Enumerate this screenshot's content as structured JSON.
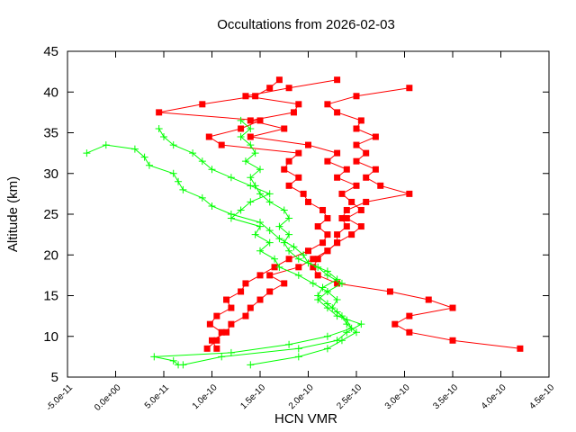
{
  "chart_data": {
    "type": "line",
    "title": "Occultations from 2026-02-03",
    "x_label": "HCN VMR",
    "y_label": "Altitude (km)",
    "xlim": [
      -5e-11,
      4.5e-10
    ],
    "ylim": [
      5,
      45
    ],
    "xticks": [
      {
        "value": -5e-11,
        "label": "-5.0e-11"
      },
      {
        "value": 0,
        "label": "0.0e+00"
      },
      {
        "value": 5e-11,
        "label": "5.0e-11"
      },
      {
        "value": 1e-10,
        "label": "1.0e-10"
      },
      {
        "value": 1.5e-10,
        "label": "1.5e-10"
      },
      {
        "value": 2e-10,
        "label": "2.0e-10"
      },
      {
        "value": 2.5e-10,
        "label": "2.5e-10"
      },
      {
        "value": 3e-10,
        "label": "3.0e-10"
      },
      {
        "value": 3.5e-10,
        "label": "3.5e-10"
      },
      {
        "value": 4e-10,
        "label": "4.0e-10"
      },
      {
        "value": 4.5e-10,
        "label": "4.5e-10"
      }
    ],
    "yticks": [
      5,
      10,
      15,
      20,
      25,
      30,
      35,
      40,
      45
    ],
    "grid": false,
    "series": [
      {
        "color": "#ff0000",
        "marker": "square",
        "y": [
          8.5,
          9.5,
          10.5,
          11.5,
          12.5,
          13.5,
          14.5,
          15.5,
          16.5,
          17.5,
          18.5,
          19.5,
          20.5,
          21.5,
          22.5,
          23.5,
          24.5,
          25.5,
          26.5,
          27.5,
          28.5,
          29.5,
          30.5,
          31.5,
          32.5,
          33.5,
          34.5,
          35.5,
          36.5,
          37.5,
          38.5,
          39.5,
          40.5
        ],
        "x": [
          4.2e-10,
          3.5e-10,
          3.05e-10,
          2.9e-10,
          3.05e-10,
          3.5e-10,
          3.25e-10,
          2.85e-10,
          2.3e-10,
          2.1e-10,
          2.05e-10,
          2.1e-10,
          2.2e-10,
          2.3e-10,
          2.3e-10,
          2.4e-10,
          2.35e-10,
          2.4e-10,
          2.6e-10,
          3.05e-10,
          2.75e-10,
          2.6e-10,
          2.7e-10,
          2.5e-10,
          2.6e-10,
          2.5e-10,
          2.7e-10,
          2.5e-10,
          2.55e-10,
          2.3e-10,
          2.2e-10,
          2.5e-10,
          3.05e-10
        ]
      },
      {
        "color": "#ff0000",
        "marker": "square",
        "y": [
          8.5,
          9.5,
          10.5,
          11.5,
          12.5,
          13.5,
          14.5,
          15.5,
          16.5,
          17.5,
          18.5,
          19.5,
          20.5,
          21.5,
          22.5,
          23.5,
          24.5,
          25.5,
          26.5,
          27.5,
          28.5,
          29.5,
          30.5,
          31.5,
          32.5,
          33.5,
          34.5,
          35.5,
          36.5,
          37.5,
          38.5,
          39.5,
          40.5,
          41.5
        ],
        "x": [
          9.5e-11,
          1.05e-10,
          1.1e-10,
          9.8e-11,
          1.05e-10,
          1.2e-10,
          1.15e-10,
          1.3e-10,
          1.35e-10,
          1.5e-10,
          1.65e-10,
          1.8e-10,
          2e-10,
          2.15e-10,
          2.2e-10,
          2.1e-10,
          2.2e-10,
          2.15e-10,
          2e-10,
          1.95e-10,
          1.8e-10,
          1.9e-10,
          1.75e-10,
          1.8e-10,
          1.9e-10,
          1.1e-10,
          9.7e-11,
          1.3e-10,
          1.5e-10,
          4.5e-11,
          9e-11,
          1.45e-10,
          1.6e-10,
          1.7e-10
        ]
      },
      {
        "color": "#ff0000",
        "marker": "square",
        "y": [
          8.5,
          9.5,
          10.5,
          11.5,
          12.5,
          13.5,
          14.5,
          15.5,
          16.5,
          17.5,
          18.5,
          19.5,
          20.5,
          21.5,
          22.5,
          23.5,
          24.5,
          25.5,
          26.5,
          27.5,
          28.5,
          29.5,
          30.5,
          31.5,
          32.5,
          33.5,
          34.5,
          35.5,
          36.5,
          37.5,
          38.5,
          39.5,
          40.5,
          41.5
        ],
        "x": [
          1.05e-10,
          1e-10,
          1.15e-10,
          1.2e-10,
          1.35e-10,
          1.4e-10,
          1.5e-10,
          1.6e-10,
          1.75e-10,
          1.6e-10,
          1.9e-10,
          2.05e-10,
          2.2e-10,
          2.3e-10,
          2.45e-10,
          2.55e-10,
          2.4e-10,
          2.55e-10,
          2.45e-10,
          2.35e-10,
          2.5e-10,
          2.3e-10,
          2.4e-10,
          2.2e-10,
          2.3e-10,
          2e-10,
          1.4e-10,
          1.75e-10,
          1.4e-10,
          1.85e-10,
          1.9e-10,
          1.35e-10,
          1.8e-10,
          2.3e-10
        ]
      },
      {
        "color": "#00ff00",
        "marker": "plus",
        "y": [
          6.5,
          7,
          7.5,
          8,
          9,
          10,
          11,
          12,
          13,
          14,
          15,
          16,
          17,
          18,
          19,
          20,
          21,
          22,
          23,
          24,
          25,
          26,
          27,
          28,
          29,
          30,
          31,
          32,
          33,
          33.5,
          32.5
        ],
        "x": [
          6.5e-11,
          6e-11,
          4e-11,
          1.2e-10,
          1.8e-10,
          2.2e-10,
          2.45e-10,
          2.4e-10,
          2.3e-10,
          2.2e-10,
          2.1e-10,
          2.15e-10,
          2.3e-10,
          2.2e-10,
          2e-10,
          1.95e-10,
          1.85e-10,
          1.7e-10,
          1.6e-10,
          1.5e-10,
          1.2e-10,
          1e-10,
          9e-11,
          7e-11,
          6.5e-11,
          6e-11,
          3.5e-11,
          3e-11,
          2e-11,
          -1e-11,
          -3e-11
        ]
      },
      {
        "color": "#00ff00",
        "marker": "plus",
        "y": [
          6.5,
          7.5,
          8.5,
          9.5,
          10.5,
          11.5,
          12.5,
          13.5,
          14.5,
          15.5,
          16.5,
          17.5,
          18.5,
          19.5,
          20.5,
          21.5,
          22.5,
          23.5,
          24.5,
          25.5,
          26.5,
          27.5,
          28.5,
          29.5,
          30.5,
          31.5,
          32.5,
          33.5,
          34.5,
          35.5
        ],
        "x": [
          7e-11,
          1.1e-10,
          1.9e-10,
          2.3e-10,
          2.4e-10,
          2.55e-10,
          2.3e-10,
          2.2e-10,
          2.1e-10,
          2.2e-10,
          2.05e-10,
          1.9e-10,
          1.7e-10,
          1.65e-10,
          1.5e-10,
          1.6e-10,
          1.45e-10,
          1.5e-10,
          1.2e-10,
          1.3e-10,
          1.4e-10,
          1.6e-10,
          1.4e-10,
          1.2e-10,
          1e-10,
          9e-11,
          8e-11,
          6e-11,
          5e-11,
          4.5e-11
        ]
      },
      {
        "color": "#00ff00",
        "marker": "plus",
        "y": [
          6.5,
          7.5,
          8.5,
          9.5,
          10.5,
          11.5,
          12.5,
          13.5,
          14.5,
          15.5,
          16.5,
          17.5,
          18.5,
          19.5,
          20.5,
          21.5,
          22.5,
          23.5,
          24.5,
          25.5,
          26.5,
          27.5,
          28.5,
          29.5,
          30.5,
          31.5,
          32.5,
          33.5,
          34.5,
          35.5,
          36.5
        ],
        "x": [
          1.4e-10,
          1.9e-10,
          2.2e-10,
          2.35e-10,
          2.5e-10,
          2.4e-10,
          2.35e-10,
          2.25e-10,
          2.3e-10,
          2.2e-10,
          2.35e-10,
          2.2e-10,
          2.1e-10,
          1.9e-10,
          1.8e-10,
          1.75e-10,
          1.8e-10,
          1.7e-10,
          1.8e-10,
          1.75e-10,
          1.6e-10,
          1.5e-10,
          1.45e-10,
          1.4e-10,
          1.5e-10,
          1.35e-10,
          1.45e-10,
          1.4e-10,
          1.3e-10,
          1.4e-10,
          1.3e-10
        ]
      }
    ]
  }
}
